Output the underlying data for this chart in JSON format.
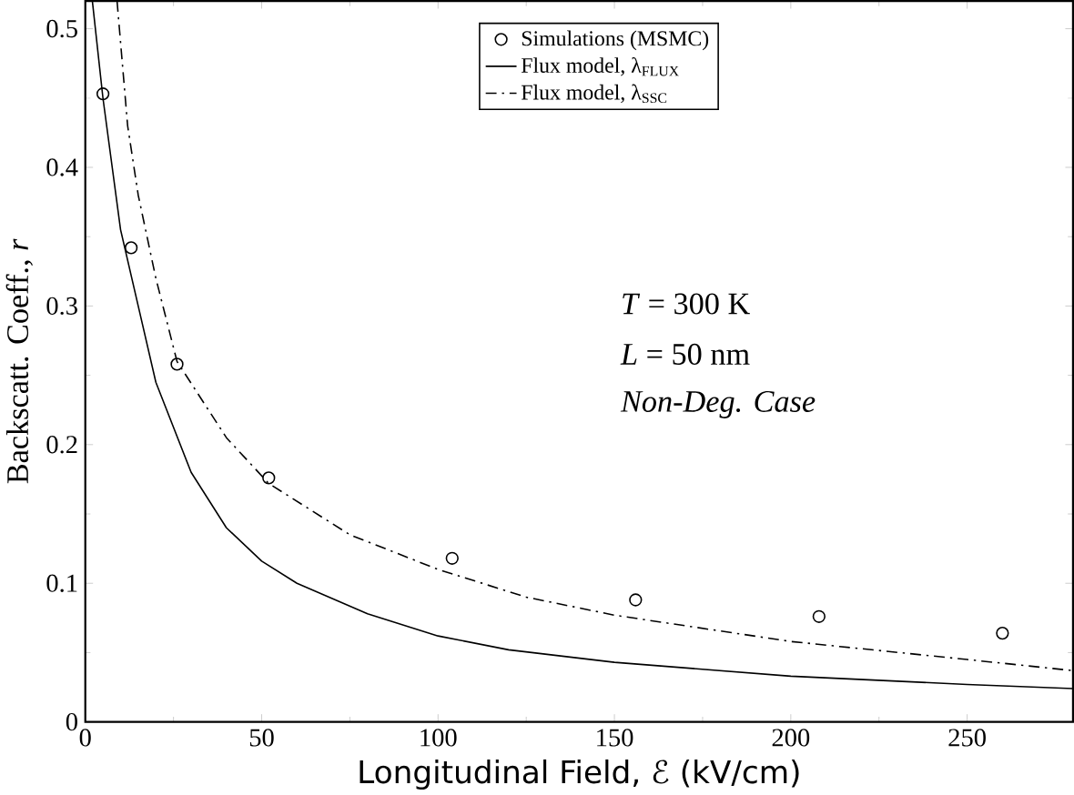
{
  "chart_data": {
    "type": "line",
    "xlabel": "Longitudinal Field, ℰ (kV/cm)",
    "ylabel": "Backscatt. Coeff., *r*",
    "xlim": [
      0,
      280
    ],
    "ylim": [
      0,
      0.52
    ],
    "xticks": [
      0,
      50,
      100,
      150,
      200,
      250
    ],
    "yticks": [
      0,
      0.1,
      0.2,
      0.3,
      0.4,
      0.5
    ],
    "legend": "top",
    "grid": false,
    "annotations": [
      "*T* = 300 K",
      "*L* = 50 nm",
      "*Non-Deg. Case*"
    ],
    "series": [
      {
        "name": "Simulations (MSMC)",
        "type": "scatter",
        "marker": "circle",
        "color": "#000000",
        "x": [
          5,
          13,
          26,
          52,
          104,
          156,
          208,
          260
        ],
        "values": [
          0.453,
          0.342,
          0.258,
          0.176,
          0.118,
          0.088,
          0.076,
          0.064
        ]
      },
      {
        "name": "Flux model, λ$_{FLUX}$",
        "line_style": "solid",
        "marker": "none",
        "color": "#000000",
        "x": [
          2,
          5,
          10,
          15,
          20,
          30,
          40,
          50,
          60,
          80,
          100,
          120,
          150,
          200,
          250,
          280
        ],
        "values": [
          0.52,
          0.45,
          0.355,
          0.3,
          0.245,
          0.18,
          0.14,
          0.116,
          0.1,
          0.078,
          0.062,
          0.052,
          0.043,
          0.033,
          0.027,
          0.024
        ]
      },
      {
        "name": "Flux model, λ$_{SSC}$",
        "line_style": "dashdotted",
        "marker": "none",
        "color": "#000000",
        "x": [
          9,
          12,
          15,
          20,
          26,
          40,
          52,
          75,
          100,
          125,
          150,
          200,
          250,
          280
        ],
        "values": [
          0.52,
          0.43,
          0.38,
          0.32,
          0.26,
          0.205,
          0.172,
          0.135,
          0.11,
          0.09,
          0.077,
          0.058,
          0.045,
          0.037
        ]
      }
    ]
  }
}
